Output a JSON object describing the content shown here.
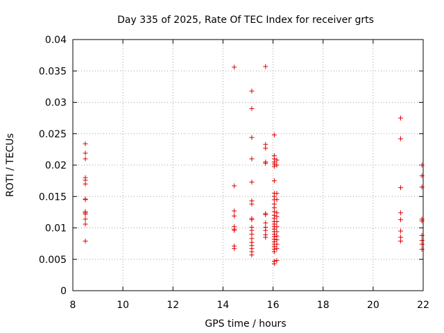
{
  "chart_data": {
    "type": "scatter",
    "title": "Day 335 of 2025, Rate Of TEC Index for receiver grts",
    "xlabel": "GPS time / hours",
    "ylabel": "ROTI / TECUs",
    "xlim": [
      8,
      22
    ],
    "ylim": [
      0,
      0.04
    ],
    "x_ticks": [
      "8",
      "10",
      "12",
      "14",
      "16",
      "18",
      "20",
      "22"
    ],
    "y_ticks": [
      "0",
      "0.005",
      "0.01",
      "0.015",
      "0.02",
      "0.025",
      "0.03",
      "0.035",
      "0.04"
    ],
    "grid": true,
    "marker": "plus",
    "color": "#e00000",
    "series": [
      {
        "points": [
          [
            8.5,
            0.0234
          ],
          [
            8.5,
            0.0219
          ],
          [
            8.5,
            0.021
          ],
          [
            8.5,
            0.018
          ],
          [
            8.5,
            0.0176
          ],
          [
            8.5,
            0.017
          ],
          [
            8.5,
            0.0146
          ],
          [
            8.5,
            0.0145
          ],
          [
            8.5,
            0.0126
          ],
          [
            8.5,
            0.0124
          ],
          [
            8.5,
            0.0122
          ],
          [
            8.5,
            0.0114
          ],
          [
            8.5,
            0.0106
          ],
          [
            8.5,
            0.0079
          ],
          [
            14.45,
            0.0356
          ],
          [
            14.45,
            0.0167
          ],
          [
            14.45,
            0.0127
          ],
          [
            14.45,
            0.0119
          ],
          [
            14.45,
            0.0102
          ],
          [
            14.45,
            0.0098
          ],
          [
            14.45,
            0.0096
          ],
          [
            14.45,
            0.0071
          ],
          [
            14.45,
            0.0067
          ],
          [
            15.15,
            0.0318
          ],
          [
            15.15,
            0.029
          ],
          [
            15.15,
            0.0244
          ],
          [
            15.15,
            0.021
          ],
          [
            15.15,
            0.0173
          ],
          [
            15.15,
            0.0143
          ],
          [
            15.15,
            0.0138
          ],
          [
            15.15,
            0.0115
          ],
          [
            15.15,
            0.0113
          ],
          [
            15.15,
            0.0101
          ],
          [
            15.15,
            0.0096
          ],
          [
            15.15,
            0.009
          ],
          [
            15.15,
            0.0083
          ],
          [
            15.15,
            0.0077
          ],
          [
            15.15,
            0.0072
          ],
          [
            15.15,
            0.0067
          ],
          [
            15.15,
            0.0062
          ],
          [
            15.15,
            0.0057
          ],
          [
            15.7,
            0.0357
          ],
          [
            15.7,
            0.0233
          ],
          [
            15.7,
            0.0227
          ],
          [
            15.7,
            0.0205
          ],
          [
            15.7,
            0.0203
          ],
          [
            15.7,
            0.0123
          ],
          [
            15.7,
            0.0121
          ],
          [
            15.7,
            0.0108
          ],
          [
            15.7,
            0.0101
          ],
          [
            15.7,
            0.0096
          ],
          [
            15.7,
            0.0089
          ],
          [
            15.7,
            0.0085
          ],
          [
            16.05,
            0.0248
          ],
          [
            16.05,
            0.0215
          ],
          [
            16.05,
            0.021
          ],
          [
            16.05,
            0.0205
          ],
          [
            16.05,
            0.0202
          ],
          [
            16.05,
            0.0198
          ],
          [
            16.05,
            0.0175
          ],
          [
            16.05,
            0.0155
          ],
          [
            16.05,
            0.015
          ],
          [
            16.05,
            0.0145
          ],
          [
            16.05,
            0.0138
          ],
          [
            16.05,
            0.0132
          ],
          [
            16.05,
            0.0126
          ],
          [
            16.05,
            0.012
          ],
          [
            16.05,
            0.0115
          ],
          [
            16.05,
            0.011
          ],
          [
            16.05,
            0.0106
          ],
          [
            16.05,
            0.0102
          ],
          [
            16.05,
            0.0098
          ],
          [
            16.05,
            0.0094
          ],
          [
            16.05,
            0.009
          ],
          [
            16.05,
            0.0086
          ],
          [
            16.05,
            0.0082
          ],
          [
            16.05,
            0.0078
          ],
          [
            16.05,
            0.0074
          ],
          [
            16.05,
            0.007
          ],
          [
            16.05,
            0.0066
          ],
          [
            16.05,
            0.0062
          ],
          [
            16.05,
            0.0047
          ],
          [
            16.05,
            0.0043
          ],
          [
            16.15,
            0.0208
          ],
          [
            16.15,
            0.02
          ],
          [
            16.15,
            0.0155
          ],
          [
            16.15,
            0.0145
          ],
          [
            16.15,
            0.0124
          ],
          [
            16.15,
            0.0118
          ],
          [
            16.15,
            0.011
          ],
          [
            16.15,
            0.0102
          ],
          [
            16.15,
            0.0094
          ],
          [
            16.15,
            0.0087
          ],
          [
            16.15,
            0.0081
          ],
          [
            16.15,
            0.0074
          ],
          [
            16.15,
            0.0067
          ],
          [
            16.15,
            0.0048
          ],
          [
            21.1,
            0.0275
          ],
          [
            21.1,
            0.0242
          ],
          [
            21.1,
            0.0164
          ],
          [
            21.1,
            0.0124
          ],
          [
            21.1,
            0.0113
          ],
          [
            21.1,
            0.0095
          ],
          [
            21.1,
            0.0085
          ],
          [
            21.1,
            0.0079
          ],
          [
            21.95,
            0.02
          ],
          [
            21.95,
            0.0183
          ],
          [
            21.95,
            0.0165
          ],
          [
            21.95,
            0.0114
          ],
          [
            21.95,
            0.0111
          ],
          [
            21.95,
            0.0088
          ],
          [
            21.95,
            0.008
          ],
          [
            21.95,
            0.0074
          ],
          [
            21.95,
            0.0066
          ]
        ]
      }
    ]
  }
}
